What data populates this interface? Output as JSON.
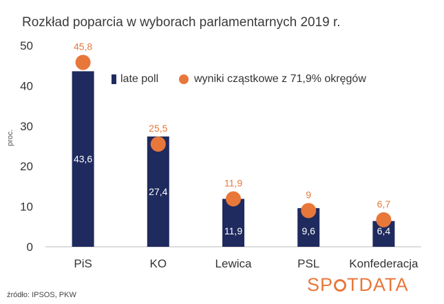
{
  "title": "Rozkład poparcia w wyborach parlamentarnych 2019 r.",
  "source": "źródło: IPSOS, PKW",
  "brand": {
    "before": "SP",
    "after": "TDATA"
  },
  "colors": {
    "bar": "#1f2a5e",
    "dot": "#e8773a",
    "axis": "#bbbbbb"
  },
  "chart_data": {
    "type": "bar",
    "title": "Rozkład poparcia w wyborach parlamentarnych 2019 r.",
    "xlabel": "",
    "ylabel": "proc.",
    "ylim": [
      0,
      50
    ],
    "yticks": [
      0,
      10,
      20,
      30,
      40,
      50
    ],
    "grid": false,
    "legend_position": "top-right",
    "categories": [
      "PiS",
      "KO",
      "Lewica",
      "PSL",
      "Konfederacja"
    ],
    "series": [
      {
        "name": "late poll",
        "type": "bar",
        "values": [
          43.6,
          27.4,
          11.9,
          9.6,
          6.4
        ],
        "labels": [
          "43,6",
          "27,4",
          "11,9",
          "9,6",
          "6,4"
        ]
      },
      {
        "name": "wyniki cząstkowe z 71,9% okręgów",
        "type": "scatter",
        "values": [
          45.8,
          25.5,
          11.9,
          9,
          6.7
        ],
        "labels": [
          "45,8",
          "25,5",
          "11,9",
          "9",
          "6,7"
        ]
      }
    ]
  }
}
